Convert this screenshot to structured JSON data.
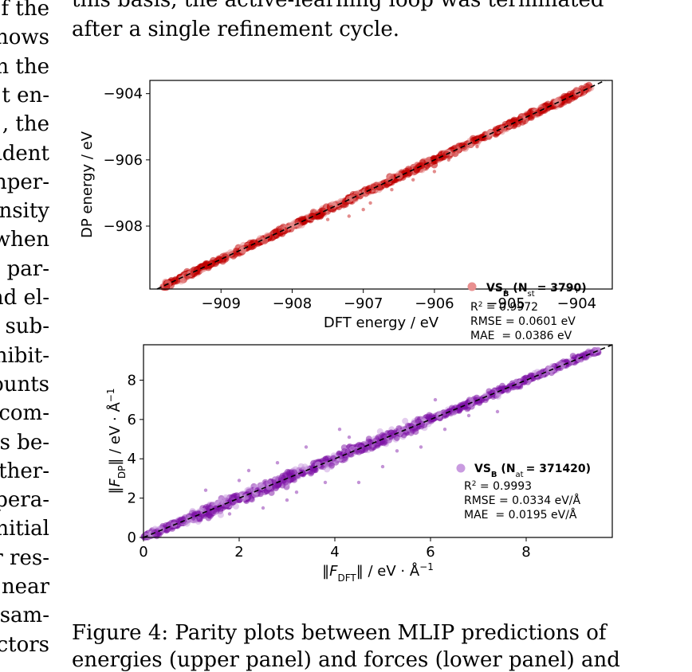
{
  "body_text": {
    "right_top_lines": [
      "this basis, the active-learning loop was terminated",
      "after a single refinement cycle."
    ],
    "left_fragments": [
      "f the",
      "hows",
      "n the",
      "t en-",
      ", the",
      "ident",
      "nper-",
      "nsity",
      "when",
      "par-",
      "nd el-",
      "sub-",
      "nibit-",
      "ounts",
      "com-",
      "s be-",
      "ther-",
      "pera-",
      "nitial",
      "r res-",
      "near",
      "sam-",
      "ctors"
    ]
  },
  "caption": {
    "line1": "Figure 4: Parity plots between MLIP predictions of",
    "line2": "energies (upper panel) and forces (lower panel) and"
  },
  "chart_data": [
    {
      "type": "scatter",
      "panel": "upper",
      "xlabel": "DFT energy / eV",
      "ylabel": "DP energy / eV",
      "xlim": [
        -910.0,
        -903.5
      ],
      "ylim": [
        -909.9,
        -903.6
      ],
      "xticks": [
        -909,
        -908,
        -907,
        -906,
        -905,
        -904
      ],
      "yticks": [
        -904,
        -906,
        -908
      ],
      "xticklabels": [
        "−909",
        "−908",
        "−907",
        "−906",
        "−905",
        "−904"
      ],
      "yticklabels": [
        "−904",
        "−906",
        "−908"
      ],
      "color": "#c00000",
      "series_color_light": "#e88f8f",
      "legend": {
        "label": "VS",
        "label_sub": "B",
        "count_symbol": "N",
        "count_sub": "st",
        "count_value": "= 3790)",
        "r2_label": "R",
        "r2_sup": "2",
        "r2_value": " = 0.9972",
        "rmse": "RMSE = 0.0601 eV",
        "mae": "MAE  = 0.0386 eV",
        "position": "lower-right"
      },
      "series": [
        {
          "name": "VS_B",
          "n_points": 3790,
          "diagonal_range": [
            -909.8,
            -903.8
          ],
          "outliers": [
            [
              -907.2,
              -907.7
            ],
            [
              -907.0,
              -907.5
            ],
            [
              -906.6,
              -906.9
            ],
            [
              -906.3,
              -906.6
            ],
            [
              -906.0,
              -906.35
            ],
            [
              -905.4,
              -905.6
            ],
            [
              -908.8,
              -908.85
            ],
            [
              -907.5,
              -907.8
            ],
            [
              -905.8,
              -906.0
            ],
            [
              -906.9,
              -907.3
            ]
          ]
        }
      ],
      "parity_line": true,
      "grid": false
    },
    {
      "type": "scatter",
      "panel": "lower",
      "xlabel_main": "F",
      "xlabel_sub": "DFT",
      "xlabel_units": "eV · Å",
      "ylabel_main": "F",
      "ylabel_sub": "DP",
      "ylabel_units": "eV · Å",
      "xlim": [
        0,
        9.8
      ],
      "ylim": [
        0,
        9.8
      ],
      "xticks": [
        0,
        2,
        4,
        6,
        8
      ],
      "yticks": [
        0,
        2,
        4,
        6,
        8
      ],
      "xticklabels": [
        "0",
        "2",
        "4",
        "6",
        "8"
      ],
      "yticklabels": [
        "0",
        "2",
        "4",
        "6",
        "8"
      ],
      "color": "#7b0fa3",
      "series_color_light": "#c99be0",
      "legend": {
        "label": "VS",
        "label_sub": "B",
        "count_symbol": "N",
        "count_sub": "at",
        "count_value": "= 371420)",
        "r2_label": "R",
        "r2_sup": "2",
        "r2_value": " = 0.9993",
        "rmse": "RMSE = 0.0334 eV/Å",
        "mae": "MAE  = 0.0195 eV/Å",
        "position": "lower-right"
      },
      "series": [
        {
          "name": "VS_B",
          "n_points": 371420,
          "diagonal_range": [
            0,
            9.5
          ],
          "outliers": [
            [
              1.3,
              2.4
            ],
            [
              2.2,
              3.4
            ],
            [
              2.5,
              1.5
            ],
            [
              3.0,
              1.9
            ],
            [
              3.4,
              4.6
            ],
            [
              3.8,
              2.8
            ],
            [
              4.1,
              5.5
            ],
            [
              4.5,
              2.8
            ],
            [
              5.0,
              3.6
            ],
            [
              5.8,
              4.6
            ],
            [
              6.1,
              7.0
            ],
            [
              6.3,
              5.5
            ],
            [
              6.8,
              6.2
            ],
            [
              7.4,
              6.4
            ],
            [
              4.3,
              5.1
            ],
            [
              2.8,
              3.8
            ],
            [
              3.2,
              2.3
            ],
            [
              5.3,
              4.4
            ],
            [
              1.8,
              1.2
            ],
            [
              2.0,
              2.9
            ]
          ]
        }
      ],
      "parity_line": true,
      "grid": false
    }
  ]
}
